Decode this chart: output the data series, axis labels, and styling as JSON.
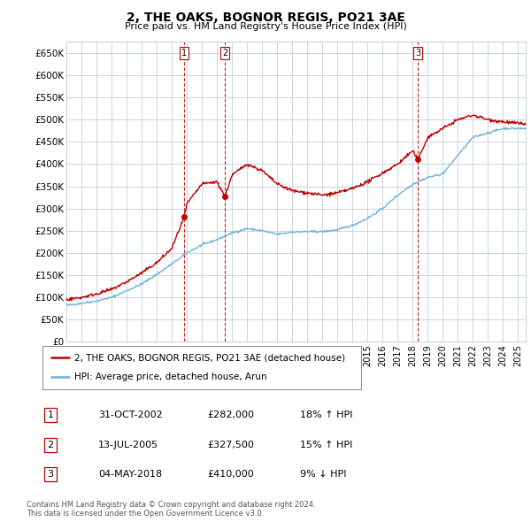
{
  "title": "2, THE OAKS, BOGNOR REGIS, PO21 3AE",
  "subtitle": "Price paid vs. HM Land Registry's House Price Index (HPI)",
  "ylabel_ticks": [
    "£0",
    "£50K",
    "£100K",
    "£150K",
    "£200K",
    "£250K",
    "£300K",
    "£350K",
    "£400K",
    "£450K",
    "£500K",
    "£550K",
    "£600K",
    "£650K"
  ],
  "ytick_values": [
    0,
    50000,
    100000,
    150000,
    200000,
    250000,
    300000,
    350000,
    400000,
    450000,
    500000,
    550000,
    600000,
    650000
  ],
  "hpi_color": "#6baed6",
  "price_color": "#c00000",
  "marker_line_color": "#c00000",
  "trans_dates": [
    2002.83,
    2005.53,
    2018.34
  ],
  "trans_prices": [
    282000,
    327500,
    410000
  ],
  "trans_labels": [
    "1",
    "2",
    "3"
  ],
  "legend_entries": [
    "2, THE OAKS, BOGNOR REGIS, PO21 3AE (detached house)",
    "HPI: Average price, detached house, Arun"
  ],
  "table_rows": [
    {
      "num": "1",
      "date": "31-OCT-2002",
      "price": "£282,000",
      "change": "18% ↑ HPI"
    },
    {
      "num": "2",
      "date": "13-JUL-2005",
      "price": "£327,500",
      "change": "15% ↑ HPI"
    },
    {
      "num": "3",
      "date": "04-MAY-2018",
      "price": "£410,000",
      "change": "9% ↓ HPI"
    }
  ],
  "footer": "Contains HM Land Registry data © Crown copyright and database right 2024.\nThis data is licensed under the Open Government Licence v3.0.",
  "background_color": "#ffffff",
  "plot_bg_color": "#ffffff",
  "grid_color": "#c8d4e3",
  "xmin": 1995.0,
  "xmax": 2025.5,
  "ymin": 0,
  "ymax": 675000
}
